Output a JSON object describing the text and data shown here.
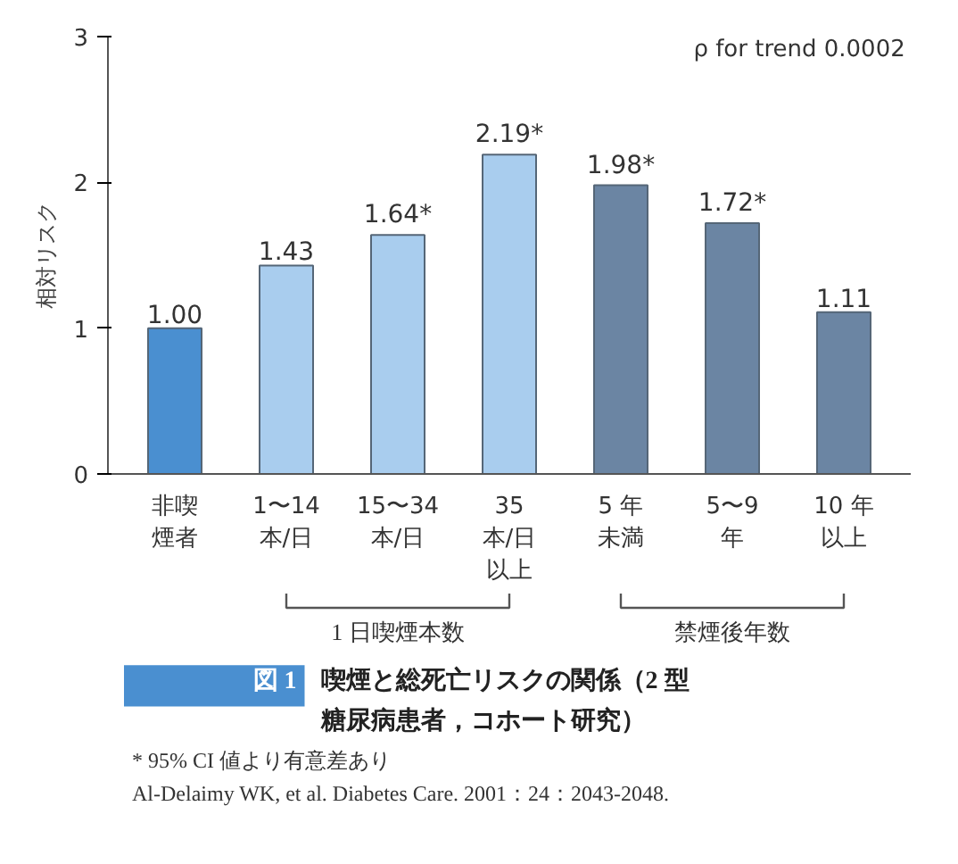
{
  "chart_data": {
    "type": "bar",
    "title": "図 1　喫煙と総死亡リスクの関係（2 型糖尿病患者，コホート研究）",
    "ylabel": "相対リスク",
    "categories": [
      "非喫煙者",
      "1〜14本/日",
      "15〜34本/日",
      "35本/日以上",
      "5 年未満",
      "5〜9年",
      "10 年以上"
    ],
    "values": [
      1.0,
      1.43,
      1.64,
      2.19,
      1.98,
      1.72,
      1.11
    ],
    "colors": [
      "#4a8fd0",
      "#a9cdee",
      "#a9cdee",
      "#a9cdee",
      "#6b85a3",
      "#6b85a3",
      "#6b85a3"
    ],
    "value_labels": [
      "1.00",
      "1.43",
      "1.64*",
      "2.19*",
      "1.98*",
      "1.72*",
      "1.11"
    ],
    "ylim": [
      0,
      3
    ],
    "yticks": [
      0,
      1,
      2,
      3
    ],
    "grid": false,
    "annotations": [
      "ρ for trend 0.0002",
      "1 日喫煙本数",
      "禁煙後年数",
      "* 95% CI 値より有意差あり",
      "Al-Delaimy WK, et al. Diabetes Care. 2001：24：2043-2048."
    ]
  }
}
